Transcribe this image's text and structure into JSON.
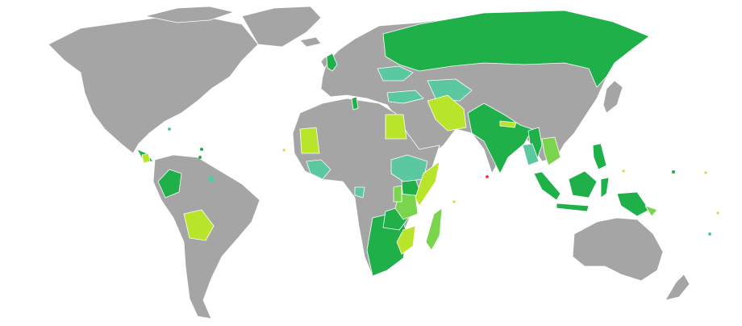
{
  "map": {
    "colors": {
      "base": "#a5a5a5",
      "dark_green": "#1fb04a",
      "teal": "#5cc8a0",
      "light_green": "#b8e52a",
      "mid_green": "#7bd44e",
      "highlight": "#ff1a1a",
      "water": "#ffffff"
    }
  }
}
